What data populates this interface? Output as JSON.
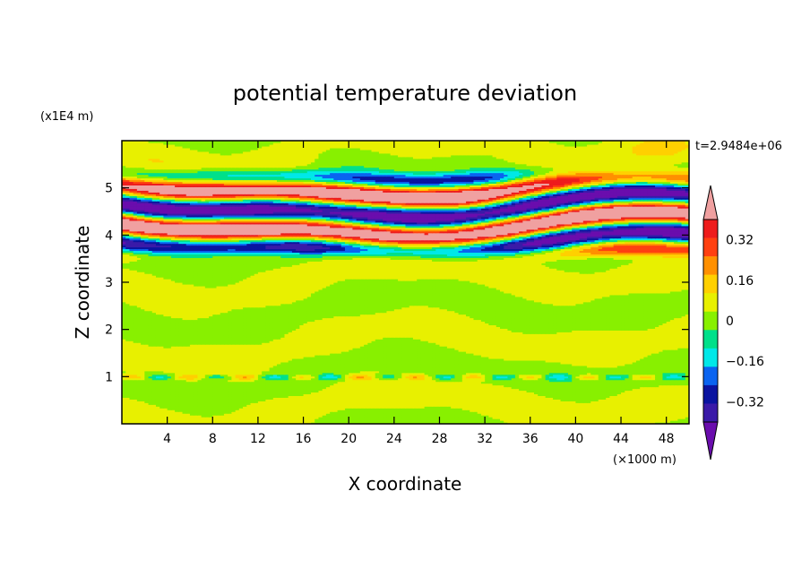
{
  "chart_data": {
    "type": "heatmap",
    "title": "potential temperature deviation",
    "xlabel": "X coordinate",
    "ylabel": "Z coordinate",
    "x_unit": "(×1000 m)",
    "y_unit": "(x1E4 m)",
    "time_label": "t=2.9484e+06",
    "xlim": [
      0,
      50
    ],
    "ylim": [
      0,
      6
    ],
    "x_ticks": [
      4,
      8,
      12,
      16,
      20,
      24,
      28,
      32,
      36,
      40,
      44,
      48
    ],
    "y_ticks": [
      1,
      2,
      3,
      4,
      5
    ],
    "colorbar": {
      "levels": [
        -0.48,
        -0.4,
        -0.32,
        -0.24,
        -0.16,
        -0.08,
        0,
        0.08,
        0.16,
        0.24,
        0.32,
        0.4,
        0.48
      ],
      "labels": [
        "0.32",
        "0.16",
        "0",
        "−0.16",
        "−0.32"
      ],
      "label_values": [
        0.32,
        0.16,
        0,
        -0.16,
        -0.32
      ],
      "colors": [
        "#6a0dad",
        "#3a1aa8",
        "#0a14a0",
        "#0a64f0",
        "#00e8e8",
        "#00e08a",
        "#88f000",
        "#e8f000",
        "#ffd000",
        "#ff9000",
        "#ff4010",
        "#ee1c1c",
        "#f0a0a0"
      ]
    }
  }
}
